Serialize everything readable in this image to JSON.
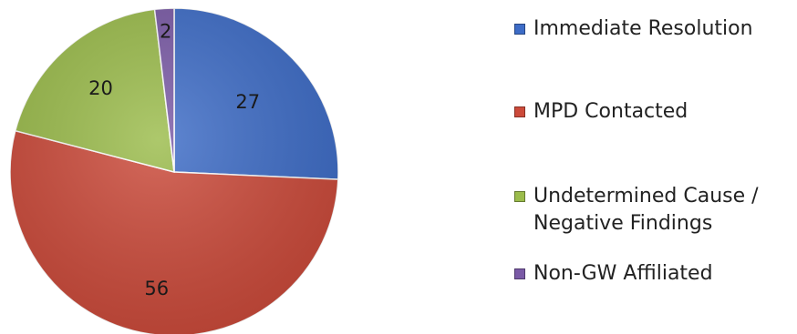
{
  "chart_data": {
    "type": "pie",
    "categories": [
      "Immediate Resolution",
      "MPD Contacted",
      "Undetermined Cause /\nNegative Findings",
      "Non-GW Affiliated"
    ],
    "values": [
      27,
      56,
      20,
      2
    ],
    "colors": [
      "#3d6cc7",
      "#cc4a3a",
      "#9bbc4b",
      "#7a5aa6"
    ],
    "legend_position": "right",
    "start_direction": "top",
    "direction": "clockwise"
  }
}
